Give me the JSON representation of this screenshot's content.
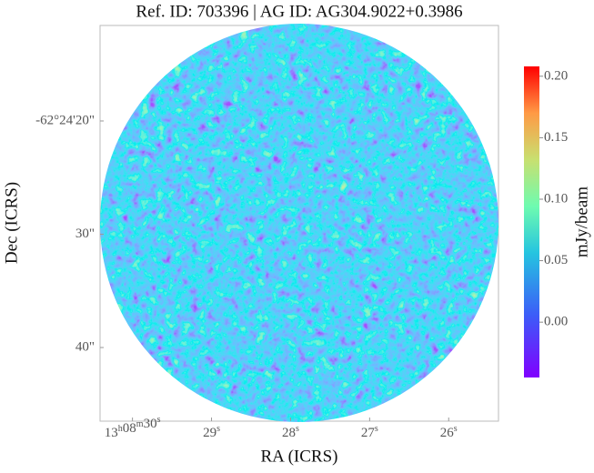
{
  "chart_data": {
    "type": "image",
    "title": "Ref. ID: 703396 | AG ID: AG304.9022+0.3986",
    "x_label": "RA (ICRS)",
    "y_label": "Dec (ICRS)",
    "xlim": [
      30.41,
      25.37
    ],
    "xticks": [
      {
        "value": 30,
        "label": "13h08m30s"
      },
      {
        "value": 29,
        "label": "29s"
      },
      {
        "value": 28,
        "label": "28s"
      },
      {
        "value": 27,
        "label": "27s"
      },
      {
        "value": 26,
        "label": "26s"
      }
    ],
    "ylim": [
      46.5,
      11.57
    ],
    "yticks": [
      {
        "value": 20,
        "label": "-62°24'20\""
      },
      {
        "value": 30,
        "label": "30\""
      },
      {
        "value": 40,
        "label": "40\""
      }
    ],
    "colorbar_label": "mJy/beam",
    "clim": [
      -0.045,
      0.208
    ],
    "cticks": [
      {
        "value": 0,
        "label": "0.00"
      },
      {
        "value": 0.05,
        "label": "0.05"
      },
      {
        "value": 0.1,
        "label": "0.10"
      },
      {
        "value": 0.15,
        "label": "0.15"
      },
      {
        "value": 0.2,
        "label": "0.20"
      }
    ]
  }
}
